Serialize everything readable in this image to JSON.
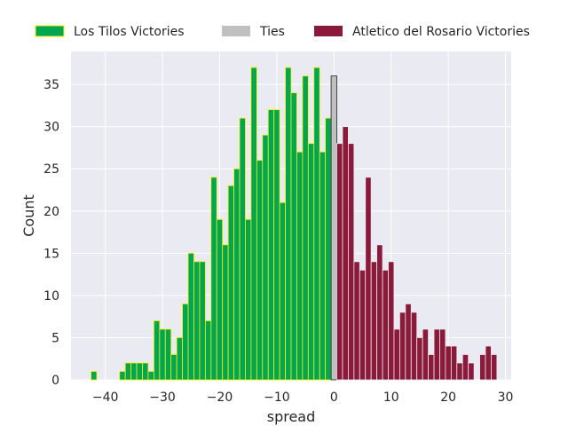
{
  "chart_data": {
    "type": "bar",
    "xlabel": "spread",
    "ylabel": "Count",
    "xlim": [
      -46,
      31
    ],
    "ylim": [
      0,
      38.9
    ],
    "xticks": [
      -40,
      -30,
      -20,
      -10,
      0,
      10,
      20,
      30
    ],
    "xtick_labels": [
      "−40",
      "−30",
      "−20",
      "−10",
      "0",
      "10",
      "20",
      "30"
    ],
    "yticks": [
      0,
      5,
      10,
      15,
      20,
      25,
      30,
      35
    ],
    "ytick_labels": [
      "0",
      "5",
      "10",
      "15",
      "20",
      "25",
      "30",
      "35"
    ],
    "grid": true,
    "legend_placement": "top",
    "colors": {
      "background": "#eaeaf2",
      "grid": "#ffffff",
      "text": "#262626"
    },
    "series": [
      {
        "name": "Los Tilos Victories",
        "color": "#00a651",
        "edge_color": "#ffee00",
        "x": [
          -42,
          -41,
          -40,
          -39,
          -38,
          -37,
          -36,
          -35,
          -34,
          -33,
          -32,
          -31,
          -30,
          -29,
          -28,
          -27,
          -26,
          -25,
          -24,
          -23,
          -22,
          -21,
          -20,
          -19,
          -18,
          -17,
          -16,
          -15,
          -14,
          -13,
          -12,
          -11,
          -10,
          -9,
          -8,
          -7,
          -6,
          -5,
          -4,
          -3,
          -2,
          -1
        ],
        "values": [
          1,
          0,
          0,
          0,
          0,
          1,
          2,
          2,
          2,
          2,
          1,
          7,
          6,
          6,
          3,
          5,
          9,
          15,
          14,
          14,
          7,
          24,
          19,
          16,
          23,
          25,
          31,
          19,
          37,
          26,
          29,
          32,
          32,
          21,
          37,
          34,
          27,
          36,
          28,
          37,
          27,
          31
        ]
      },
      {
        "name": "Ties",
        "color": "#c0c0c0",
        "edge_color": "#222222",
        "x": [
          0
        ],
        "values": [
          36
        ]
      },
      {
        "name": "Atletico del Rosario Victories",
        "color": "#8b1a3a",
        "edge_color": "#eaeaf2",
        "x": [
          1,
          2,
          3,
          4,
          5,
          6,
          7,
          8,
          9,
          10,
          11,
          12,
          13,
          14,
          15,
          16,
          17,
          18,
          19,
          20,
          21,
          22,
          23,
          24,
          25,
          26,
          27,
          28
        ],
        "values": [
          28,
          30,
          28,
          14,
          13,
          24,
          14,
          16,
          13,
          14,
          6,
          8,
          9,
          8,
          5,
          6,
          3,
          6,
          6,
          4,
          4,
          2,
          3,
          2,
          0,
          3,
          4,
          3
        ]
      }
    ]
  }
}
